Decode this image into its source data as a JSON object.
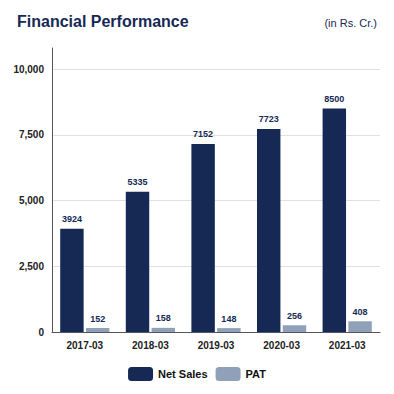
{
  "chart_data": {
    "type": "bar",
    "title": "Financial Performance",
    "subtitle": "(in Rs. Cr.)",
    "categories": [
      "2017-03",
      "2018-03",
      "2019-03",
      "2020-03",
      "2021-03"
    ],
    "series": [
      {
        "name": "Net Sales",
        "color": "#162955",
        "values": [
          3924,
          5335,
          7152,
          7723,
          8500
        ]
      },
      {
        "name": "PAT",
        "color": "#8fa0b8",
        "values": [
          152,
          158,
          148,
          256,
          408
        ]
      }
    ],
    "ylim": [
      0,
      10800
    ],
    "yticks": [
      0,
      {
        "value": 2500,
        "label": "2,500"
      },
      {
        "value": 5000,
        "label": "5,000"
      },
      {
        "value": 7500,
        "label": "7,500"
      },
      {
        "value": 10000,
        "label": "10,000"
      }
    ],
    "grid": true,
    "legend": "bottom",
    "data_labels": true
  }
}
